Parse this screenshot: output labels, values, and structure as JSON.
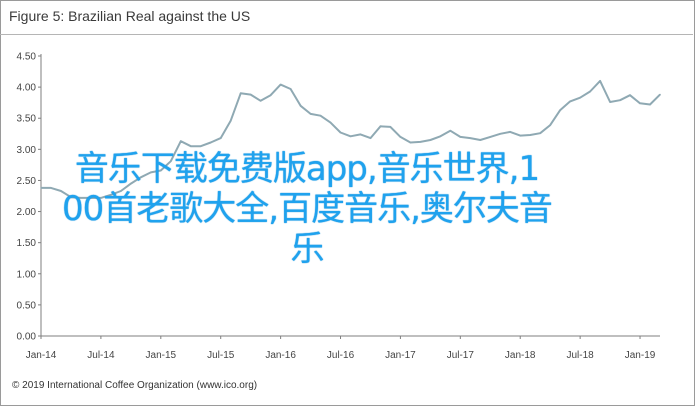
{
  "figure": {
    "title": "Figure 5: Brazilian Real against the US",
    "footer": "© 2019 International Coffee Organization (www.ico.org)"
  },
  "overlay_text": {
    "line1": "音乐下载免费版app,音乐世界,1",
    "line2": "00首老歌大全,百度音乐,奥尔夫音",
    "line3": "乐"
  },
  "colors": {
    "line": "#8fa9b3",
    "axis": "#7f7f7f",
    "overlay": "#1fa2ee"
  },
  "chart_data": {
    "type": "line",
    "title": "Brazilian Real against the US",
    "xlabel": "",
    "ylabel": "",
    "ylim": [
      0,
      4.5
    ],
    "yticks": [
      "0.00",
      "0.50",
      "1.00",
      "1.50",
      "2.00",
      "2.50",
      "3.00",
      "3.50",
      "4.00",
      "4.50"
    ],
    "xticks": [
      "Jan-14",
      "Jul-14",
      "Jan-15",
      "Jul-15",
      "Jan-16",
      "Jul-16",
      "Jan-17",
      "Jul-17",
      "Jan-18",
      "Jul-18",
      "Jan-19"
    ],
    "grid": false,
    "legend": "none",
    "series": [
      {
        "x": [
          "Jan-14",
          "Feb-14",
          "Mar-14",
          "Apr-14",
          "May-14",
          "Jun-14",
          "Jul-14",
          "Aug-14",
          "Sep-14",
          "Oct-14",
          "Nov-14",
          "Dec-14",
          "Jan-15",
          "Feb-15",
          "Mar-15",
          "Apr-15",
          "May-15",
          "Jun-15",
          "Jul-15",
          "Aug-15",
          "Sep-15",
          "Oct-15",
          "Nov-15",
          "Dec-15",
          "Jan-16",
          "Feb-16",
          "Mar-16",
          "Apr-16",
          "May-16",
          "Jun-16",
          "Jul-16",
          "Aug-16",
          "Sep-16",
          "Oct-16",
          "Nov-16",
          "Dec-16",
          "Jan-17",
          "Feb-17",
          "Mar-17",
          "Apr-17",
          "May-17",
          "Jun-17",
          "Jul-17",
          "Aug-17",
          "Sep-17",
          "Oct-17",
          "Nov-17",
          "Dec-17",
          "Jan-18",
          "Feb-18",
          "Mar-18",
          "Apr-18",
          "May-18",
          "Jun-18",
          "Jul-18",
          "Aug-18",
          "Sep-18",
          "Oct-18",
          "Nov-18",
          "Dec-18",
          "Jan-19",
          "Feb-19",
          "Mar-19"
        ],
        "values": [
          2.38,
          2.38,
          2.33,
          2.23,
          2.22,
          2.22,
          2.22,
          2.27,
          2.33,
          2.45,
          2.55,
          2.63,
          2.66,
          2.81,
          3.13,
          3.05,
          3.05,
          3.11,
          3.18,
          3.46,
          3.9,
          3.88,
          3.78,
          3.87,
          4.04,
          3.97,
          3.7,
          3.57,
          3.54,
          3.43,
          3.27,
          3.21,
          3.24,
          3.18,
          3.37,
          3.36,
          3.2,
          3.11,
          3.12,
          3.15,
          3.21,
          3.3,
          3.2,
          3.18,
          3.15,
          3.2,
          3.25,
          3.28,
          3.22,
          3.23,
          3.26,
          3.39,
          3.63,
          3.77,
          3.83,
          3.93,
          4.1,
          3.76,
          3.79,
          3.87,
          3.74,
          3.72,
          3.88
        ]
      }
    ]
  }
}
